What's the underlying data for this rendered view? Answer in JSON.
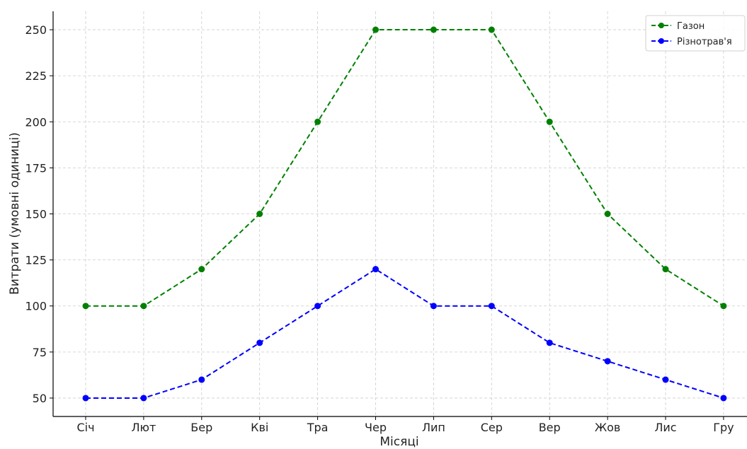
{
  "chart_data": {
    "type": "line",
    "title": "",
    "xlabel": "Місяці",
    "ylabel": "Витрати (умовні одиниці)",
    "categories": [
      "Січ",
      "Лют",
      "Бер",
      "Кві",
      "Тра",
      "Чер",
      "Лип",
      "Сер",
      "Вер",
      "Жов",
      "Лис",
      "Гру"
    ],
    "yticks": [
      50,
      75,
      100,
      125,
      150,
      175,
      200,
      225,
      250
    ],
    "ylim": [
      40,
      260
    ],
    "grid": true,
    "legend_position": "top-right",
    "series": [
      {
        "name": "Газон",
        "color": "#008000",
        "line_style": "dashed",
        "marker": "circle",
        "values": [
          100,
          100,
          120,
          150,
          200,
          250,
          250,
          250,
          200,
          150,
          120,
          100
        ]
      },
      {
        "name": "Різнотрав'я",
        "color": "#0000ff",
        "line_style": "dashed",
        "marker": "circle",
        "values": [
          50,
          50,
          60,
          80,
          100,
          120,
          100,
          100,
          80,
          70,
          60,
          50
        ]
      }
    ]
  }
}
